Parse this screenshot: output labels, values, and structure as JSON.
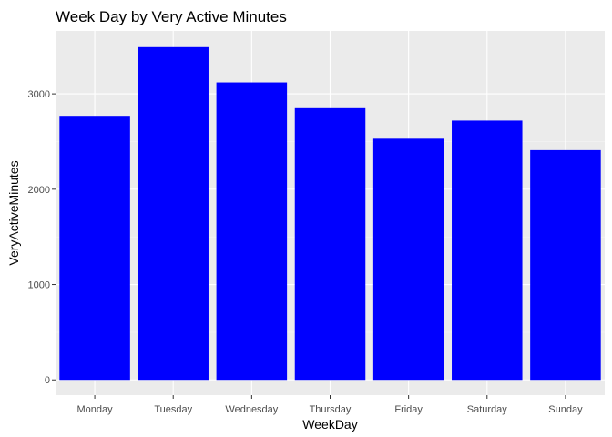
{
  "chart_data": {
    "type": "bar",
    "title": "Week Day by Very Active Minutes",
    "xlabel": "WeekDay",
    "ylabel": "VeryActiveMinutes",
    "categories": [
      "Monday",
      "Tuesday",
      "Wednesday",
      "Thursday",
      "Friday",
      "Saturday",
      "Sunday"
    ],
    "values": [
      2770,
      3490,
      3120,
      2850,
      2530,
      2720,
      2410
    ],
    "ylim": [
      -160,
      3660
    ],
    "yticks": [
      0,
      1000,
      2000,
      3000
    ],
    "ytick_labels": [
      "0",
      "1000",
      "2000",
      "3000"
    ],
    "grid": true,
    "legend": "none",
    "colors": {
      "bar": "#0000FF",
      "panel": "#EBEBEB",
      "grid_major": "#FFFFFF",
      "grid_minor": "#F5F5F5"
    }
  }
}
